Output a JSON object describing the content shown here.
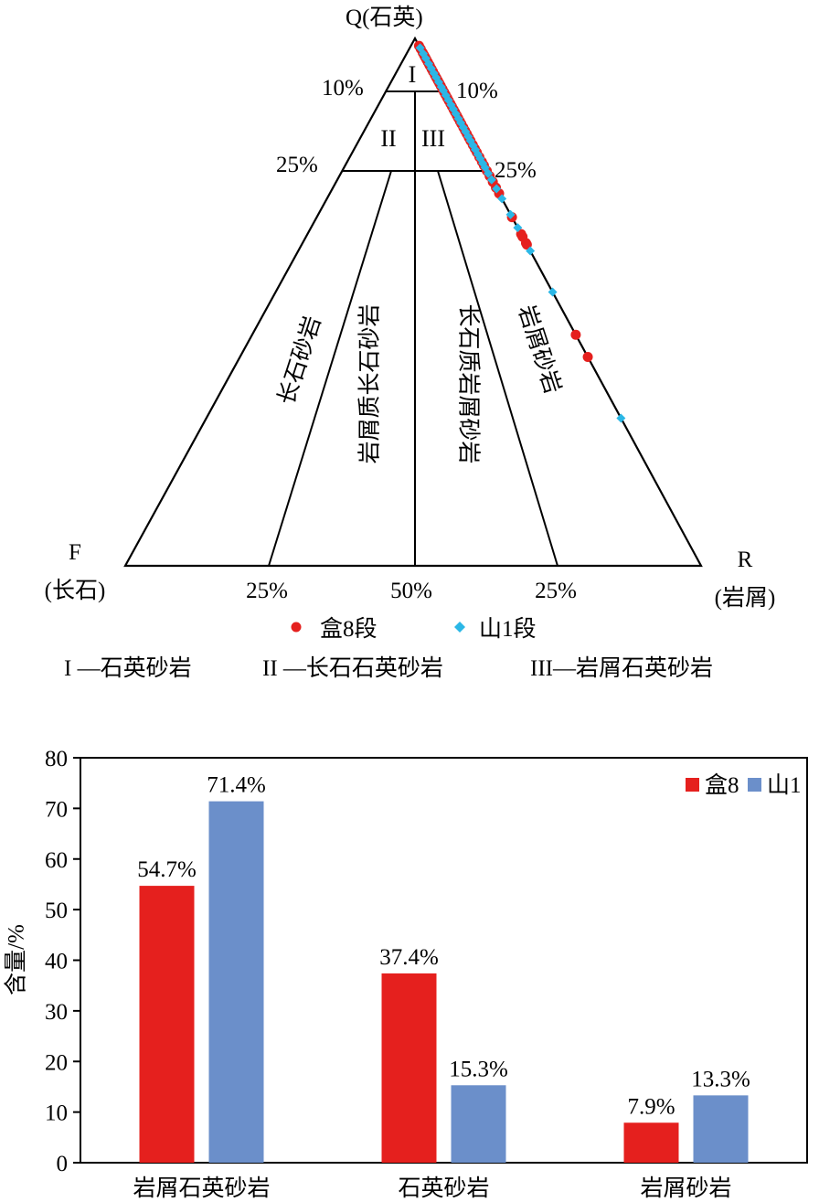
{
  "colors": {
    "he8": "#e5201e",
    "shan1": "#2bb7e6",
    "shan1_bar": "#6b8fca",
    "line": "#000000"
  },
  "chart_data": [
    {
      "type": "ternary-scatter",
      "apex_top": {
        "letter": "Q",
        "name": "(石英)"
      },
      "apex_left": {
        "letter": "F",
        "name": "(长石)"
      },
      "apex_right": {
        "letter": "R",
        "name": "(岩屑)"
      },
      "percent_labels": {
        "q10_left": "10%",
        "q10_right": "10%",
        "q25_left": "25%",
        "q25_right": "25%",
        "base_25_left": "25%",
        "base_50": "50%",
        "base_25_right": "25%"
      },
      "zone_codes": {
        "I": "I",
        "II": "II",
        "III": "III"
      },
      "fields": {
        "feldspar_sandstone": "长石砂岩",
        "lithic_feldspar_sandstone": "岩屑质长石砂岩",
        "feldspathic_lithic_sandstone": "长石质岩屑砂岩",
        "lithic_sandstone": "岩屑砂岩"
      },
      "legend": {
        "he8": {
          "symbol": "circle",
          "label": "盒8段"
        },
        "shan1": {
          "symbol": "diamond",
          "label": "山1段"
        }
      },
      "zone_key": [
        "I —石英砂岩",
        "II —长石石英砂岩",
        "III—岩屑石英砂岩"
      ],
      "series": [
        {
          "name": "盒8段",
          "marker": "circle",
          "points_QR_percent": [
            [
              98.6,
              1.4
            ],
            [
              98,
              2
            ],
            [
              97.3,
              2.7
            ],
            [
              96.8,
              3.2
            ],
            [
              96.4,
              3.6
            ],
            [
              96,
              4
            ],
            [
              95.5,
              4.5
            ],
            [
              95,
              5
            ],
            [
              94.8,
              5.2
            ],
            [
              94.2,
              5.8
            ],
            [
              93.7,
              6.3
            ],
            [
              93,
              7
            ],
            [
              92.5,
              7.5
            ],
            [
              92,
              8
            ],
            [
              91.5,
              8.5
            ],
            [
              91,
              9
            ],
            [
              90.4,
              9.6
            ],
            [
              89.8,
              10.2
            ],
            [
              89.3,
              10.7
            ],
            [
              88.7,
              11.3
            ],
            [
              88.2,
              11.8
            ],
            [
              87.6,
              12.4
            ],
            [
              87.1,
              12.9
            ],
            [
              86.5,
              13.5
            ],
            [
              86,
              14
            ],
            [
              85.4,
              14.6
            ],
            [
              84.9,
              15.1
            ],
            [
              84.3,
              15.7
            ],
            [
              83.8,
              16.2
            ],
            [
              83.1,
              16.9
            ],
            [
              82.5,
              17.5
            ],
            [
              81.9,
              18.1
            ],
            [
              81.2,
              18.8
            ],
            [
              80.6,
              19.4
            ],
            [
              79.8,
              20.2
            ],
            [
              79.1,
              20.9
            ],
            [
              78.4,
              21.6
            ],
            [
              77.5,
              22.5
            ],
            [
              76.6,
              23.4
            ],
            [
              75.9,
              24.1
            ],
            [
              74.9,
              25.1
            ],
            [
              73.9,
              26.1
            ],
            [
              72.8,
              27.2
            ],
            [
              71.7,
              28.3
            ],
            [
              70.6,
              29.4
            ],
            [
              66.1,
              33.9
            ],
            [
              62.9,
              37.1
            ],
            [
              62.4,
              37.6
            ],
            [
              61.2,
              38.8
            ],
            [
              60.9,
              39.1
            ],
            [
              43.8,
              56.2
            ],
            [
              39.6,
              60.4
            ]
          ]
        },
        {
          "name": "山1段",
          "marker": "diamond",
          "points_QR_percent": [
            [
              98.2,
              1.8
            ],
            [
              97.1,
              2.9
            ],
            [
              96.2,
              3.8
            ],
            [
              95.2,
              4.8
            ],
            [
              94.3,
              5.7
            ],
            [
              93.4,
              6.6
            ],
            [
              92.6,
              7.4
            ],
            [
              91.7,
              8.3
            ],
            [
              90.8,
              9.2
            ],
            [
              90.1,
              9.9
            ],
            [
              89.2,
              10.8
            ],
            [
              88.3,
              11.7
            ],
            [
              87.4,
              12.6
            ],
            [
              86.6,
              13.4
            ],
            [
              85.7,
              14.3
            ],
            [
              84.8,
              15.2
            ],
            [
              84,
              16
            ],
            [
              83.1,
              16.9
            ],
            [
              82.3,
              17.7
            ],
            [
              81.4,
              18.6
            ],
            [
              80.6,
              19.4
            ],
            [
              79.7,
              20.3
            ],
            [
              78.9,
              21.1
            ],
            [
              78,
              22
            ],
            [
              77.2,
              22.8
            ],
            [
              76.3,
              23.7
            ],
            [
              75.5,
              24.5
            ],
            [
              74.4,
              25.6
            ],
            [
              73.2,
              26.8
            ],
            [
              71.5,
              28.5
            ],
            [
              69.6,
              30.4
            ],
            [
              66.6,
              33.4
            ],
            [
              64.1,
              35.9
            ],
            [
              59.7,
              40.3
            ],
            [
              51.9,
              48.1
            ],
            [
              28,
              72
            ]
          ]
        }
      ]
    },
    {
      "type": "bar",
      "categories": [
        "岩屑石英砂岩",
        "石英砂岩",
        "岩屑砂岩"
      ],
      "series": [
        {
          "name": "盒8",
          "values": [
            54.7,
            37.4,
            7.9
          ],
          "labels": [
            "54.7%",
            "37.4%",
            "7.9%"
          ]
        },
        {
          "name": "山1",
          "values": [
            71.4,
            15.3,
            13.3
          ],
          "labels": [
            "71.4%",
            "15.3%",
            "13.3%"
          ]
        }
      ],
      "ylabel": "含量/%",
      "ylim": [
        0,
        80
      ],
      "yticks": [
        0,
        10,
        20,
        30,
        40,
        50,
        60,
        70,
        80
      ],
      "legend_position": "top-right"
    }
  ]
}
